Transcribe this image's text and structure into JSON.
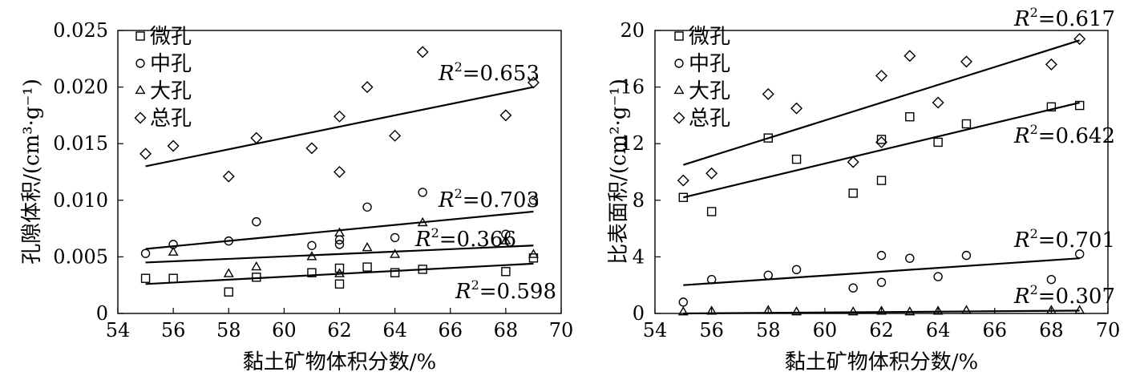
{
  "chart_data": [
    {
      "type": "scatter",
      "xlabel": "黏土矿物体积分数/%",
      "ylabel": "孔隙体积/(cm³·g⁻¹)",
      "xlim": [
        54,
        70
      ],
      "ylim": [
        0,
        0.025
      ],
      "xticks": [
        "54",
        "56",
        "58",
        "60",
        "62",
        "64",
        "66",
        "68",
        "70"
      ],
      "yticks": [
        "0",
        "0.005",
        "0.010",
        "0.015",
        "0.020",
        "0.025"
      ],
      "grid": false,
      "legend_position": "top-left",
      "series": [
        {
          "name": "微孔",
          "marker": "square",
          "x": [
            55,
            56,
            58,
            59,
            61,
            62,
            62,
            63,
            64,
            65,
            68,
            69
          ],
          "y": [
            0.0031,
            0.0031,
            0.0019,
            0.0032,
            0.0036,
            0.0026,
            0.004,
            0.0041,
            0.0036,
            0.0039,
            0.0037,
            0.0049
          ],
          "fit": {
            "x": [
              55,
              69
            ],
            "y": [
              0.0026,
              0.0044
            ]
          },
          "r2": "0.598"
        },
        {
          "name": "中孔",
          "marker": "circle",
          "x": [
            55,
            56,
            58,
            59,
            61,
            62,
            62,
            63,
            64,
            65,
            68,
            69
          ],
          "y": [
            0.0053,
            0.0061,
            0.0064,
            0.0081,
            0.006,
            0.0061,
            0.0065,
            0.0094,
            0.0067,
            0.0107,
            0.007,
            0.01
          ],
          "fit": {
            "x": [
              55,
              69
            ],
            "y": [
              0.0057,
              0.009
            ]
          },
          "r2": "0.703"
        },
        {
          "name": "大孔",
          "marker": "triangle",
          "x": [
            56,
            58,
            59,
            61,
            62,
            62,
            63,
            64,
            65,
            68,
            69
          ],
          "y": [
            0.0054,
            0.0035,
            0.0041,
            0.005,
            0.0071,
            0.0035,
            0.0058,
            0.0052,
            0.008,
            0.0064,
            0.0052
          ],
          "fit": {
            "x": [
              55,
              69
            ],
            "y": [
              0.0045,
              0.006
            ]
          },
          "r2": "0.366"
        },
        {
          "name": "总孔",
          "marker": "diamond",
          "x": [
            55,
            56,
            58,
            59,
            61,
            62,
            62,
            63,
            64,
            65,
            68,
            69
          ],
          "y": [
            0.0141,
            0.0148,
            0.0121,
            0.0155,
            0.0146,
            0.0174,
            0.0125,
            0.02,
            0.0157,
            0.0231,
            0.0175,
            0.0204
          ],
          "fit": {
            "x": [
              55,
              69
            ],
            "y": [
              0.013,
              0.02
            ]
          },
          "r2": "0.653"
        }
      ]
    },
    {
      "type": "scatter",
      "xlabel": "黏土矿物体积分数/%",
      "ylabel": "比表面积/(cm²·g⁻¹)",
      "xlim": [
        54,
        70
      ],
      "ylim": [
        0,
        20
      ],
      "xticks": [
        "54",
        "56",
        "58",
        "60",
        "62",
        "64",
        "66",
        "68",
        "70"
      ],
      "yticks": [
        "0",
        "4",
        "8",
        "12",
        "16",
        "20"
      ],
      "grid": false,
      "legend_position": "top-left",
      "series": [
        {
          "name": "微孔",
          "marker": "square",
          "x": [
            55,
            56,
            58,
            59,
            61,
            62,
            62,
            63,
            64,
            65,
            68,
            69
          ],
          "y": [
            8.2,
            7.2,
            12.4,
            10.9,
            8.5,
            9.4,
            12.3,
            13.9,
            12.1,
            13.4,
            14.6,
            14.7
          ],
          "fit": {
            "x": [
              55,
              69
            ],
            "y": [
              8.2,
              14.9
            ]
          },
          "r2": "0.642"
        },
        {
          "name": "中孔",
          "marker": "circle",
          "x": [
            55,
            56,
            58,
            59,
            61,
            62,
            62,
            63,
            64,
            65,
            68,
            69
          ],
          "y": [
            0.8,
            2.4,
            2.7,
            3.1,
            1.8,
            2.2,
            4.1,
            3.9,
            2.6,
            4.1,
            2.4,
            4.2
          ],
          "fit": {
            "x": [
              55,
              69
            ],
            "y": [
              2.0,
              3.9
            ]
          },
          "r2": "0.701"
        },
        {
          "name": "大孔",
          "marker": "triangle",
          "x": [
            55,
            56,
            58,
            59,
            61,
            62,
            63,
            64,
            65,
            68,
            69
          ],
          "y": [
            0.1,
            0.15,
            0.2,
            0.1,
            0.1,
            0.15,
            0.1,
            0.15,
            0.2,
            0.2,
            0.2
          ],
          "fit": {
            "x": [
              55,
              69
            ],
            "y": [
              0.0,
              0.2
            ]
          },
          "r2": "0.307"
        },
        {
          "name": "总孔",
          "marker": "diamond",
          "x": [
            55,
            56,
            58,
            59,
            61,
            62,
            62,
            63,
            64,
            65,
            68,
            69
          ],
          "y": [
            9.4,
            9.9,
            15.5,
            14.5,
            10.7,
            16.8,
            12.1,
            18.2,
            14.9,
            17.8,
            17.6,
            19.4
          ],
          "fit": {
            "x": [
              55,
              69
            ],
            "y": [
              10.5,
              19.3
            ]
          },
          "r2": "0.617"
        }
      ]
    }
  ]
}
